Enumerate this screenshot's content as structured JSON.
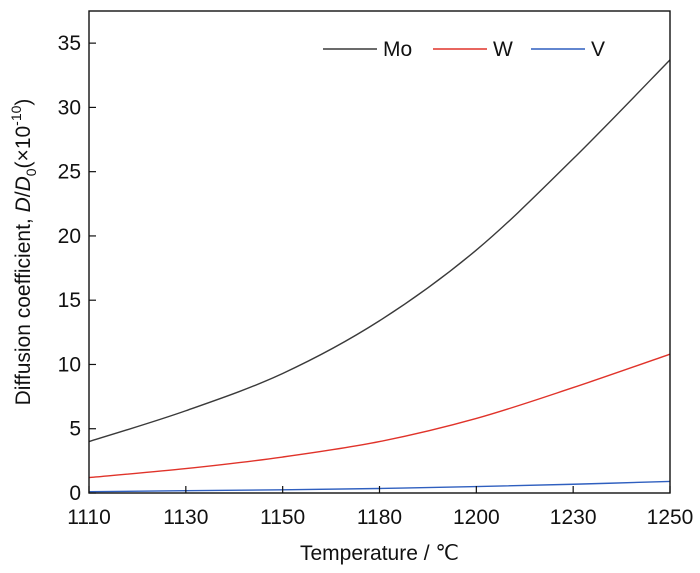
{
  "chart_data": {
    "type": "line",
    "xlabel": "Temperature / ℃",
    "ylabel_prefix": "Diffusion coefficient, ",
    "ylabel_D": "D",
    "ylabel_sep": "/",
    "ylabel_D0": "D",
    "ylabel_sub": "0",
    "ylabel_paren_open": "(×10",
    "ylabel_exp": "-10",
    "ylabel_paren_close": ")",
    "x_ticks": [
      "1110",
      "1130",
      "1150",
      "1180",
      "1200",
      "1230",
      "1250"
    ],
    "y_ticks": [
      0,
      5,
      10,
      15,
      20,
      25,
      30,
      35
    ],
    "ylim": [
      0,
      37.5
    ],
    "grid": false,
    "legend_position": "top-right",
    "series": [
      {
        "name": "Mo",
        "color": "#3a3a3a",
        "points": [
          [
            0,
            4.0
          ],
          [
            1,
            6.4
          ],
          [
            2,
            9.3
          ],
          [
            3,
            13.4
          ],
          [
            4,
            18.9
          ],
          [
            5,
            26.0
          ],
          [
            6,
            33.7
          ]
        ]
      },
      {
        "name": "W",
        "color": "#e0332a",
        "points": [
          [
            0,
            1.2
          ],
          [
            1,
            1.9
          ],
          [
            2,
            2.8
          ],
          [
            3,
            4.0
          ],
          [
            4,
            5.8
          ],
          [
            5,
            8.2
          ],
          [
            6,
            10.8
          ]
        ]
      },
      {
        "name": "V",
        "color": "#2f5fbf",
        "points": [
          [
            0,
            0.1
          ],
          [
            1,
            0.18
          ],
          [
            2,
            0.25
          ],
          [
            3,
            0.35
          ],
          [
            4,
            0.5
          ],
          [
            5,
            0.68
          ],
          [
            6,
            0.9
          ]
        ]
      }
    ]
  }
}
